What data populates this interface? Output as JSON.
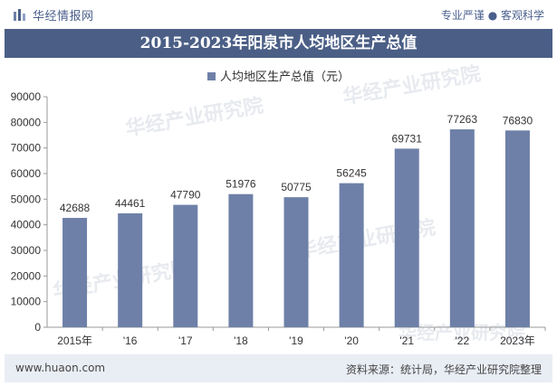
{
  "header": {
    "brand": "华经情报网",
    "slogan": "专业严谨 ● 客观科学"
  },
  "title": "2015-2023年阳泉市人均地区生产总值",
  "legend_label": "人均地区生产总值（元）",
  "footer": {
    "url": "www.huaon.com",
    "source": "资料来源：统计局，华经产业研究院整理"
  },
  "colors": {
    "bar": "#6e80a8",
    "title_bg": "#4b5f86",
    "footer_bg": "#e9edf4"
  },
  "chart_data": {
    "type": "bar",
    "categories": [
      "2015年",
      "'16",
      "'17",
      "'18",
      "'19",
      "'20",
      "'21",
      "'22",
      "2023年"
    ],
    "series": [
      {
        "name": "人均地区生产总值（元）",
        "values": [
          42688,
          44461,
          47790,
          51976,
          50775,
          56245,
          69731,
          77263,
          76830
        ]
      }
    ],
    "ylim": [
      0,
      90000
    ],
    "yticks": [
      0,
      10000,
      20000,
      30000,
      40000,
      50000,
      60000,
      70000,
      80000,
      90000
    ],
    "grid": false,
    "legend_position": "top"
  }
}
